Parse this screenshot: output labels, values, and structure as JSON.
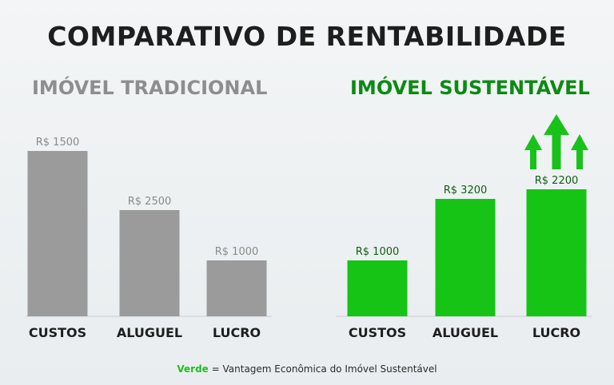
{
  "title": "COMPARATIVO DE RENTABILIDADE",
  "legend": {
    "key": "Verde",
    "text": " = Vantagem Econômica do Imóvel Sustentável"
  },
  "colors": {
    "traditional": "#9b9b9b",
    "sustainable": "#15c415",
    "sustainable_title": "#0b8a12",
    "arrow": "#19c21b"
  },
  "chart_data": [
    {
      "type": "bar",
      "title": "IMÓVEL TRADICIONAL",
      "categories": [
        "CUSTOS",
        "ALUGUEL",
        "LUCRO"
      ],
      "values": [
        1500,
        2500,
        1000
      ],
      "value_labels": [
        "R$ 1500",
        "R$ 2500",
        "R$ 1000"
      ],
      "color": "#9b9b9b"
    },
    {
      "type": "bar",
      "title": "IMÓVEL SUSTENTÁVEL",
      "categories": [
        "CUSTOS",
        "ALUGUEL",
        "LUCRO"
      ],
      "values": [
        1000,
        3200,
        2200
      ],
      "value_labels": [
        "R$ 1000",
        "R$ 3200",
        "R$ 2200"
      ],
      "color": "#15c415"
    }
  ]
}
